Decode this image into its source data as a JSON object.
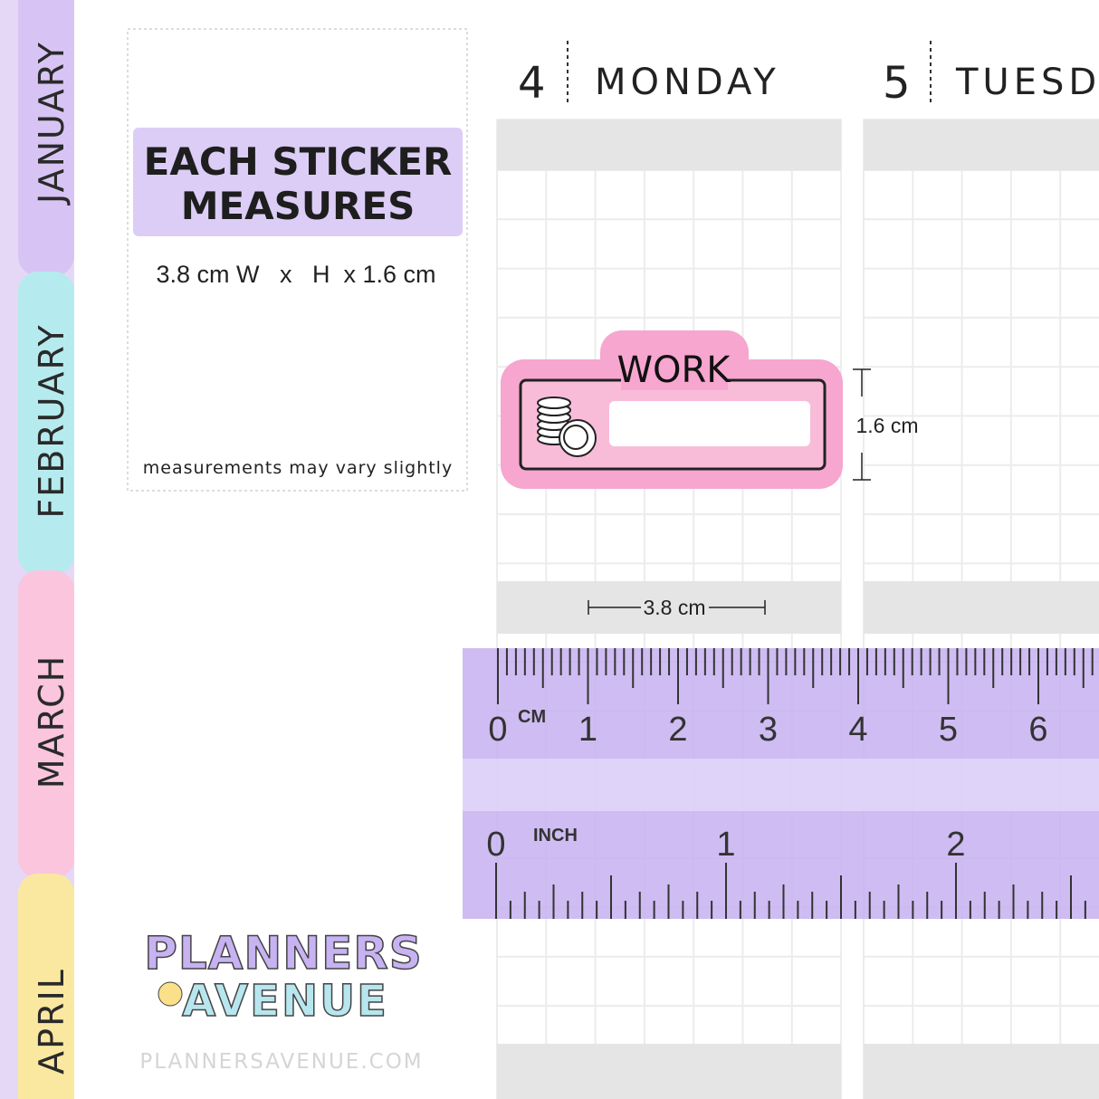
{
  "tabs": [
    "JANUARY",
    "FEBRUARY",
    "MARCH",
    "APRIL"
  ],
  "info": {
    "title_lines": [
      "EACH STICKER",
      "MEASURES"
    ],
    "dimensions": "3.8 cm W   x   H  x 1.6 cm",
    "note": "measurements may vary slightly"
  },
  "days": [
    {
      "number": "4",
      "name": "MONDAY"
    },
    {
      "number": "5",
      "name": "TUESDAY"
    }
  ],
  "sticker": {
    "label": "WORK",
    "height_label": "1.6 cm",
    "width_label": "3.8 cm"
  },
  "ruler": {
    "cm_unit": "CM",
    "cm_numbers": [
      "0",
      "1",
      "2",
      "3",
      "4",
      "5",
      "6"
    ],
    "inch_unit": "INCH",
    "inch_numbers": [
      "0",
      "1",
      "2"
    ]
  },
  "logo": {
    "line1": "PLANNERS",
    "line2": "AVENUE"
  },
  "website": "PLANNERSAVENUE.COM"
}
